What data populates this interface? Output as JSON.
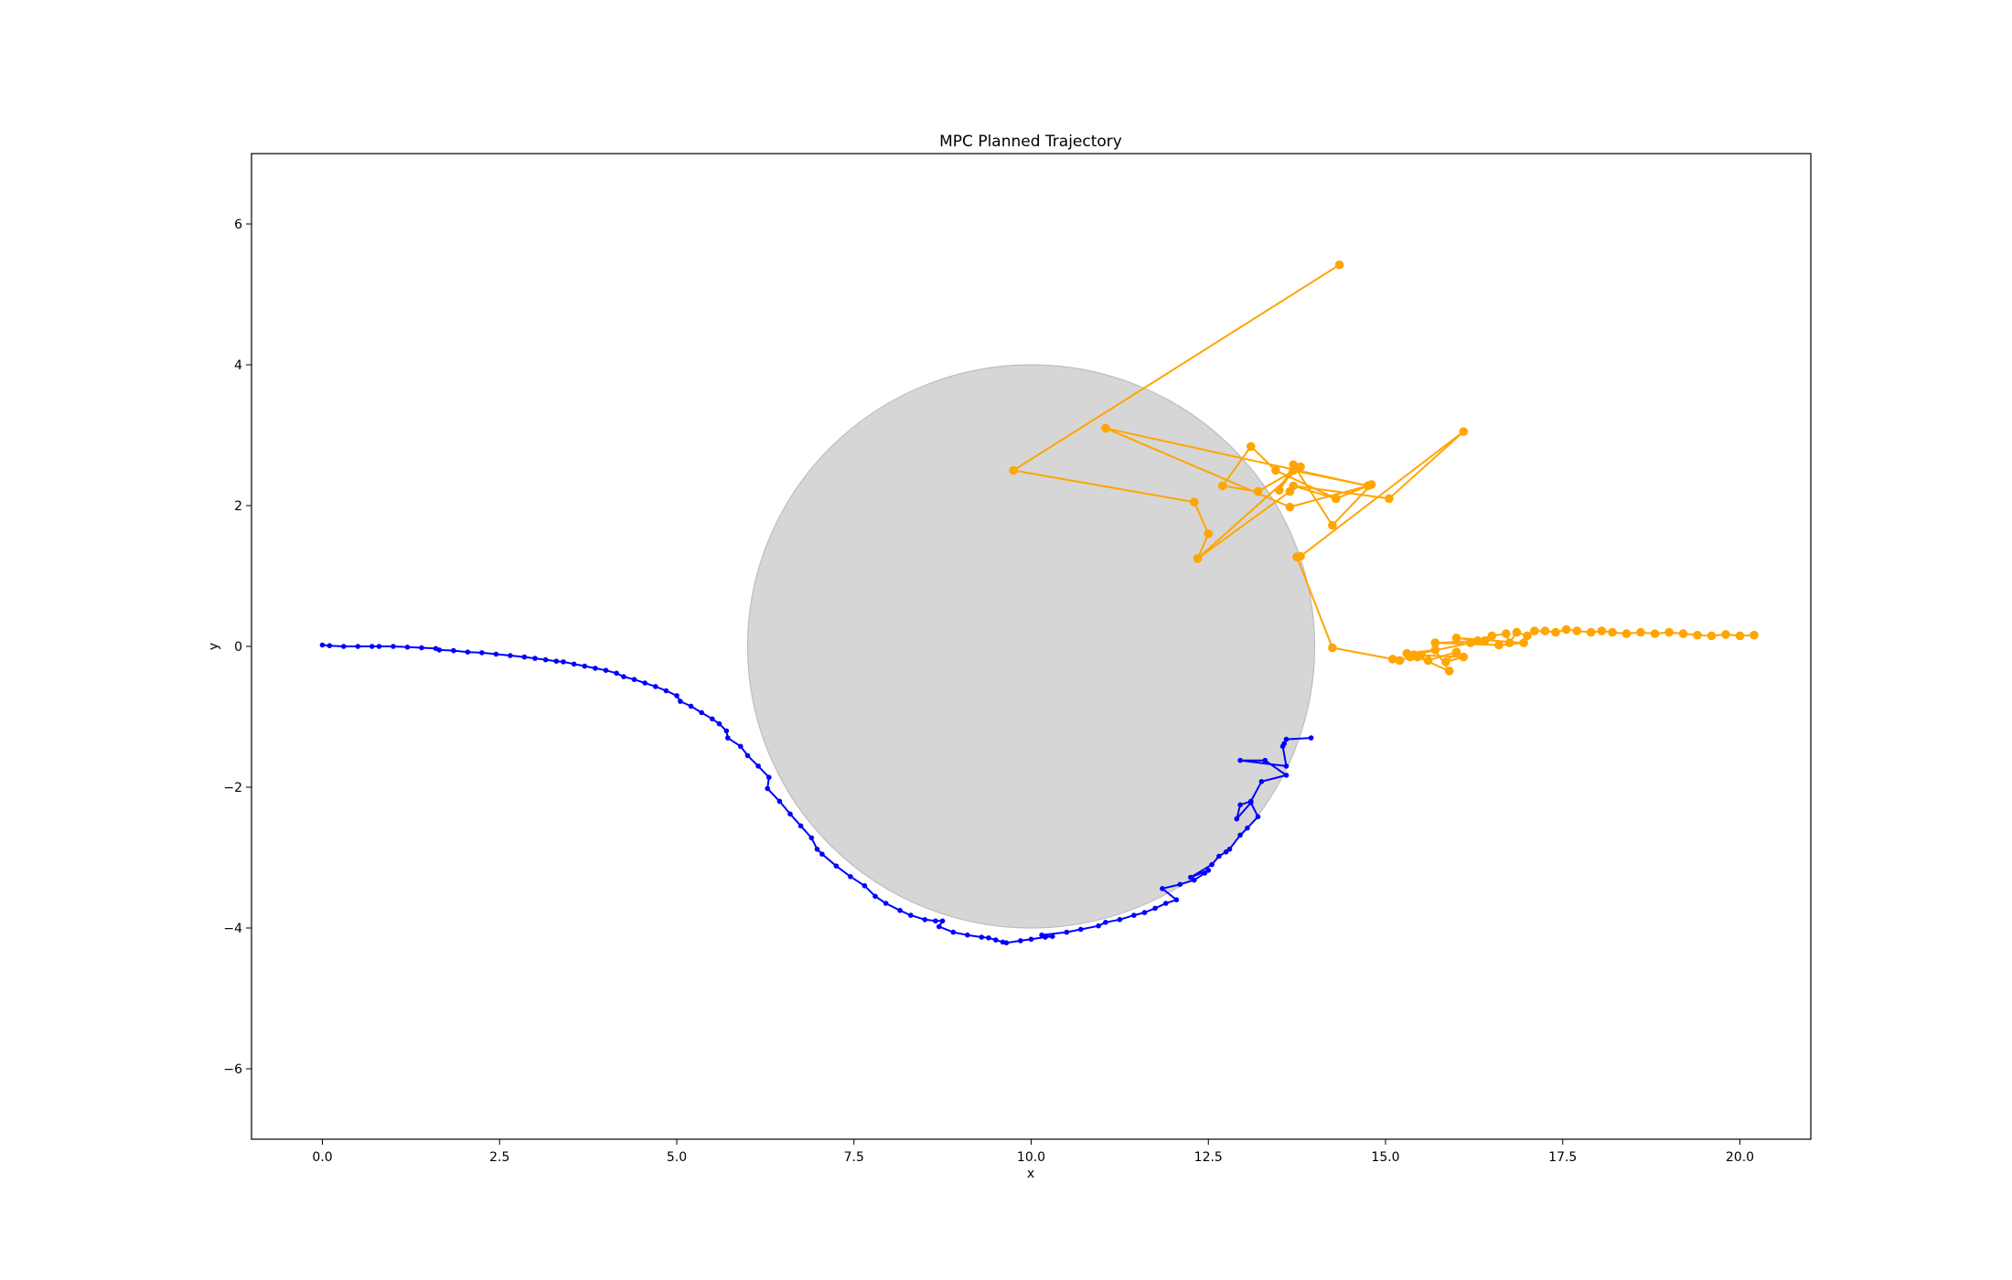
{
  "chart_data": {
    "type": "line",
    "title": "MPC Planned Trajectory",
    "xlabel": "x",
    "ylabel": "y",
    "xlim": [
      -1.0,
      21.0
    ],
    "ylim": [
      -7.0,
      7.0
    ],
    "xticks": [
      "0.0",
      "2.5",
      "5.0",
      "7.5",
      "10.0",
      "12.5",
      "15.0",
      "17.5",
      "20.0"
    ],
    "xtick_values": [
      0,
      2.5,
      5,
      7.5,
      10,
      12.5,
      15,
      17.5,
      20
    ],
    "yticks": [
      "−6",
      "−4",
      "−2",
      "0",
      "2",
      "4",
      "6"
    ],
    "ytick_values": [
      -6,
      -4,
      -2,
      0,
      2,
      4,
      6
    ],
    "grid": false,
    "obstacle": {
      "center": [
        10.0,
        0.0
      ],
      "radius": 4.0,
      "color": "#d6d6d6"
    },
    "series": [
      {
        "color": "#0000ff",
        "marker": "small-dot",
        "x": [
          0.0,
          0.1,
          0.3,
          0.5,
          0.7,
          0.8,
          1.0,
          1.2,
          1.4,
          1.6,
          1.65,
          1.85,
          2.05,
          2.25,
          2.45,
          2.65,
          2.85,
          3.0,
          3.15,
          3.3,
          3.4,
          3.55,
          3.7,
          3.85,
          4.0,
          4.15,
          4.25,
          4.4,
          4.55,
          4.7,
          4.85,
          5.0,
          5.05,
          5.2,
          5.35,
          5.5,
          5.6,
          5.7,
          5.72,
          5.9,
          6.0,
          6.15,
          6.3,
          6.28,
          6.45,
          6.6,
          6.75,
          6.9,
          6.98,
          7.05,
          7.25,
          7.45,
          7.65,
          7.8,
          7.95,
          8.15,
          8.3,
          8.5,
          8.65,
          8.75,
          8.7,
          8.9,
          9.1,
          9.3,
          9.4,
          9.5,
          9.6,
          9.65,
          9.85,
          10.0,
          10.2,
          10.3,
          10.15,
          10.5,
          10.7,
          10.95,
          11.05,
          11.25,
          11.45,
          11.6,
          11.75,
          11.9,
          12.05,
          11.85,
          12.1,
          12.3,
          12.45,
          12.5,
          12.25,
          12.55,
          12.65,
          12.75,
          12.8,
          12.95,
          13.05,
          13.2,
          13.1,
          12.9,
          12.95,
          13.1,
          13.25,
          13.6,
          13.3,
          12.95,
          13.6,
          13.55,
          13.57,
          13.6,
          13.95
        ],
        "y": [
          0.02,
          0.01,
          0.0,
          0.0,
          0.0,
          0.0,
          0.0,
          -0.01,
          -0.02,
          -0.03,
          -0.05,
          -0.06,
          -0.08,
          -0.09,
          -0.11,
          -0.13,
          -0.15,
          -0.17,
          -0.19,
          -0.21,
          -0.22,
          -0.25,
          -0.28,
          -0.31,
          -0.34,
          -0.38,
          -0.43,
          -0.47,
          -0.52,
          -0.57,
          -0.63,
          -0.7,
          -0.78,
          -0.85,
          -0.94,
          -1.03,
          -1.1,
          -1.2,
          -1.3,
          -1.42,
          -1.55,
          -1.7,
          -1.86,
          -2.02,
          -2.2,
          -2.38,
          -2.55,
          -2.72,
          -2.88,
          -2.95,
          -3.12,
          -3.27,
          -3.4,
          -3.55,
          -3.65,
          -3.75,
          -3.82,
          -3.88,
          -3.9,
          -3.9,
          -3.98,
          -4.06,
          -4.1,
          -4.13,
          -4.14,
          -4.17,
          -4.2,
          -4.21,
          -4.18,
          -4.16,
          -4.13,
          -4.12,
          -4.1,
          -4.06,
          -4.02,
          -3.97,
          -3.92,
          -3.88,
          -3.82,
          -3.78,
          -3.72,
          -3.65,
          -3.6,
          -3.44,
          -3.38,
          -3.32,
          -3.22,
          -3.18,
          -3.28,
          -3.1,
          -2.98,
          -2.92,
          -2.88,
          -2.68,
          -2.58,
          -2.42,
          -2.22,
          -2.45,
          -2.25,
          -2.2,
          -1.92,
          -1.83,
          -1.62,
          -1.62,
          -1.7,
          -1.42,
          -1.38,
          -1.32,
          -1.3
        ],
        "note_name": ""
      },
      {
        "color": "#ffa500",
        "marker": "dot",
        "x": [
          14.35,
          9.75,
          12.3,
          12.5,
          12.35,
          13.65,
          12.35,
          13.8,
          13.2,
          12.7,
          13.1,
          13.45,
          14.3,
          14.75,
          13.65,
          11.05,
          14.75,
          13.7,
          13.5,
          13.7,
          14.25,
          14.8,
          14.3,
          13.7,
          15.05,
          16.1,
          13.8,
          13.75,
          14.25,
          15.1,
          15.2,
          15.35,
          15.5,
          15.3,
          15.7,
          15.9,
          15.45,
          15.6,
          16.0,
          15.85,
          16.1,
          15.4,
          16.2,
          16.4,
          15.7,
          16.6,
          16.95,
          16.0,
          16.3,
          16.5,
          16.7,
          16.75,
          16.85,
          17.0,
          17.1,
          17.25,
          17.4,
          17.55,
          17.7,
          17.9,
          18.05,
          18.2,
          18.4,
          18.6,
          18.8,
          19.0,
          19.2,
          19.4,
          19.6,
          19.8,
          20.0,
          20.2
        ],
        "y": [
          5.42,
          2.5,
          2.05,
          1.6,
          1.25,
          2.2,
          1.25,
          2.55,
          2.2,
          2.28,
          2.84,
          2.5,
          2.1,
          2.28,
          1.98,
          3.1,
          2.28,
          2.5,
          2.22,
          2.58,
          1.72,
          2.3,
          2.1,
          2.28,
          2.1,
          3.05,
          1.28,
          1.27,
          -0.02,
          -0.18,
          -0.2,
          -0.15,
          -0.12,
          -0.1,
          -0.05,
          -0.35,
          -0.15,
          -0.2,
          -0.08,
          -0.22,
          -0.15,
          -0.12,
          0.05,
          0.08,
          0.05,
          0.02,
          0.05,
          0.12,
          0.08,
          0.15,
          0.18,
          0.05,
          0.2,
          0.15,
          0.22,
          0.22,
          0.2,
          0.24,
          0.22,
          0.2,
          0.22,
          0.2,
          0.18,
          0.2,
          0.18,
          0.2,
          0.18,
          0.16,
          0.15,
          0.17,
          0.15,
          0.16
        ]
      }
    ]
  }
}
